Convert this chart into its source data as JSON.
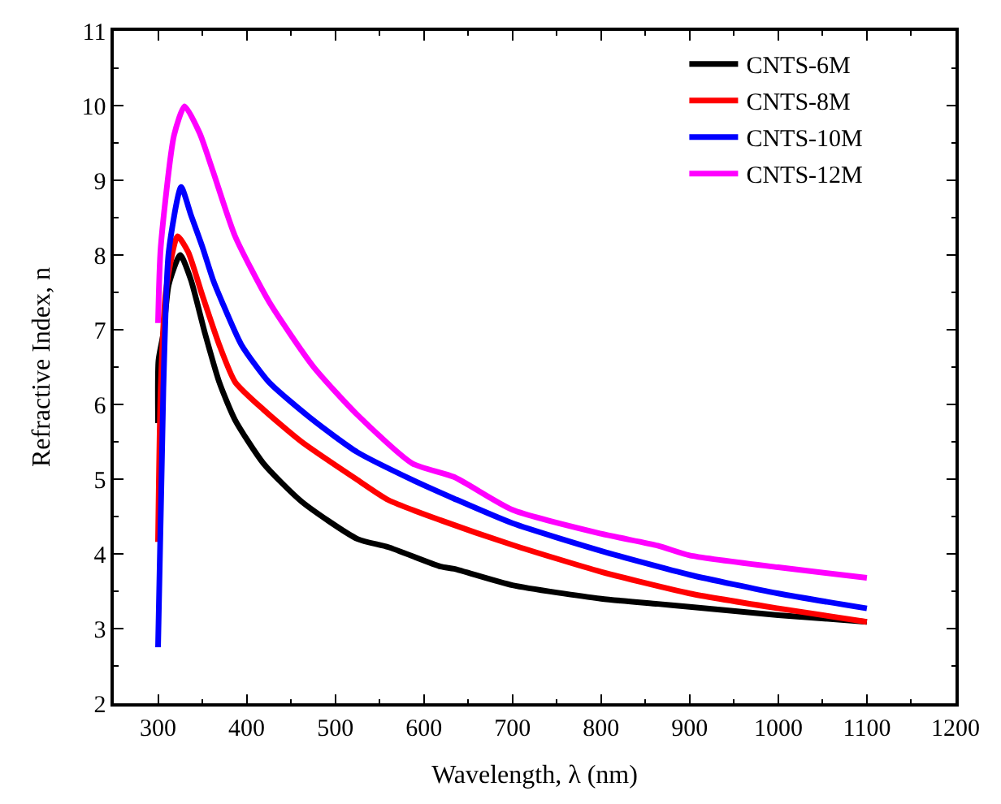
{
  "chart_data": {
    "type": "line",
    "xlabel": "Wavelength, λ (nm)",
    "ylabel": "Refractive Index, n",
    "xlim": [
      250,
      1200
    ],
    "ylim": [
      2,
      11
    ],
    "xticks": [
      300,
      400,
      500,
      600,
      700,
      800,
      900,
      1000,
      1100,
      1200
    ],
    "yticks": [
      2,
      3,
      4,
      5,
      6,
      7,
      8,
      9,
      10,
      11
    ],
    "legend": "top right",
    "marker": "none",
    "line_style": "solid",
    "series": [
      {
        "name": "CNTS-6M",
        "color": "#000000",
        "x": [
          300,
          300.5,
          306,
          312,
          325,
          337,
          353,
          369,
          387,
          419,
          462,
          525,
          560,
          619,
          634,
          700,
          800,
          864,
          900,
          1000,
          1100
        ],
        "values": [
          5.75,
          6.59,
          6.95,
          7.6,
          8.0,
          7.67,
          6.95,
          6.3,
          5.79,
          5.21,
          4.7,
          4.2,
          4.09,
          3.83,
          3.8,
          3.58,
          3.4,
          3.33,
          3.29,
          3.18,
          3.09
        ]
      },
      {
        "name": "CNTS-8M",
        "color": "#ff0000",
        "x": [
          300,
          303,
          309,
          322,
          334,
          350,
          369,
          387,
          419,
          462,
          525,
          560,
          619,
          700,
          800,
          900,
          1000,
          1100
        ],
        "values": [
          4.16,
          6.22,
          7.53,
          8.25,
          8.04,
          7.46,
          6.8,
          6.3,
          5.93,
          5.5,
          4.99,
          4.72,
          4.45,
          4.12,
          3.76,
          3.47,
          3.27,
          3.09
        ]
      },
      {
        "name": "CNTS-10M",
        "color": "#0000ff",
        "x": [
          300,
          306,
          312,
          326,
          337,
          350,
          362,
          372,
          394,
          425,
          475,
          525,
          587,
          634,
          700,
          800,
          900,
          1000,
          1100
        ],
        "values": [
          2.75,
          6.22,
          8.04,
          8.91,
          8.54,
          8.11,
          7.67,
          7.38,
          6.8,
          6.3,
          5.79,
          5.36,
          4.99,
          4.74,
          4.41,
          4.04,
          3.72,
          3.47,
          3.27
        ]
      },
      {
        "name": "CNTS-12M",
        "color": "#ff00ff",
        "x": [
          300,
          303,
          318,
          330,
          347,
          362,
          387,
          425,
          475,
          525,
          587,
          634,
          700,
          800,
          864,
          900,
          1000,
          1100
        ],
        "values": [
          7.09,
          8.1,
          9.6,
          9.99,
          9.63,
          9.12,
          8.25,
          7.38,
          6.51,
          5.86,
          5.21,
          5.03,
          4.59,
          4.27,
          4.11,
          3.98,
          3.82,
          3.68
        ]
      }
    ]
  }
}
